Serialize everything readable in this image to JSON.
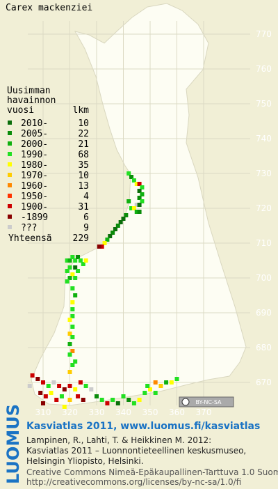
{
  "title": "Carex mackenziei",
  "legend": {
    "heading": [
      "Uusimman",
      "havainnon",
      "vuosi"
    ],
    "count_header": "lkm",
    "entries": [
      {
        "label": "2010-",
        "count": 10,
        "color": "#0b6e0b"
      },
      {
        "label": "2005-",
        "count": 22,
        "color": "#0a8c0a"
      },
      {
        "label": "2000-",
        "count": 21,
        "color": "#10b010"
      },
      {
        "label": "1990-",
        "count": 68,
        "color": "#22e022"
      },
      {
        "label": "1980-",
        "count": 35,
        "color": "#ffff00"
      },
      {
        "label": "1970-",
        "count": 10,
        "color": "#ffcc00"
      },
      {
        "label": "1960-",
        "count": 13,
        "color": "#ff8800"
      },
      {
        "label": "1950-",
        "count": 4,
        "color": "#ff3300"
      },
      {
        "label": "1900-",
        "count": 31,
        "color": "#cc0000"
      },
      {
        "label": "-1899",
        "count": 6,
        "color": "#880000"
      },
      {
        "label": "???",
        "count": 9,
        "color": "#cccccc"
      }
    ],
    "total_label": "Yhteensä",
    "total": 229
  },
  "x_ticks": [
    310,
    320,
    330,
    340,
    350,
    360,
    370
  ],
  "y_ticks": [
    670,
    680,
    690,
    700,
    710,
    720,
    730,
    740,
    750,
    760,
    770
  ],
  "cells": [
    [
      342,
      730,
      3
    ],
    [
      343,
      729,
      1
    ],
    [
      344,
      728,
      3
    ],
    [
      345,
      727,
      4
    ],
    [
      346,
      727,
      8
    ],
    [
      347,
      726,
      3
    ],
    [
      346,
      725,
      0
    ],
    [
      347,
      724,
      2
    ],
    [
      346,
      723,
      1
    ],
    [
      347,
      722,
      3
    ],
    [
      345,
      721,
      10
    ],
    [
      346,
      721,
      0
    ],
    [
      343,
      720,
      3
    ],
    [
      344,
      720,
      4
    ],
    [
      345,
      719,
      2
    ],
    [
      346,
      719,
      1
    ],
    [
      342,
      722,
      2
    ],
    [
      341,
      718,
      1
    ],
    [
      340,
      717,
      0
    ],
    [
      339,
      716,
      0
    ],
    [
      338,
      715,
      1
    ],
    [
      337,
      714,
      0
    ],
    [
      336,
      713,
      1
    ],
    [
      335,
      712,
      0
    ],
    [
      334,
      711,
      2
    ],
    [
      333,
      710,
      4
    ],
    [
      332,
      709,
      8
    ],
    [
      331,
      709,
      9
    ],
    [
      319,
      705,
      3
    ],
    [
      320,
      705,
      2
    ],
    [
      321,
      706,
      3
    ],
    [
      322,
      705,
      3
    ],
    [
      323,
      706,
      1
    ],
    [
      324,
      705,
      3
    ],
    [
      325,
      704,
      3
    ],
    [
      326,
      705,
      4
    ],
    [
      320,
      703,
      3
    ],
    [
      322,
      703,
      0
    ],
    [
      323,
      702,
      3
    ],
    [
      319,
      702,
      3
    ],
    [
      321,
      701,
      4
    ],
    [
      320,
      700,
      2
    ],
    [
      322,
      700,
      3
    ],
    [
      319,
      699,
      3
    ],
    [
      321,
      697,
      3
    ],
    [
      322,
      695,
      2
    ],
    [
      321,
      693,
      4
    ],
    [
      321,
      691,
      3
    ],
    [
      321,
      689,
      3
    ],
    [
      320,
      688,
      4
    ],
    [
      321,
      686,
      3
    ],
    [
      320,
      684,
      5
    ],
    [
      321,
      683,
      3
    ],
    [
      320,
      681,
      2
    ],
    [
      321,
      679,
      6
    ],
    [
      320,
      678,
      3
    ],
    [
      322,
      676,
      3
    ],
    [
      321,
      675,
      3
    ],
    [
      320,
      673,
      5
    ],
    [
      306,
      672,
      8
    ],
    [
      308,
      671,
      9
    ],
    [
      310,
      670,
      8
    ],
    [
      312,
      669,
      3
    ],
    [
      314,
      670,
      10
    ],
    [
      316,
      669,
      8
    ],
    [
      318,
      668,
      9
    ],
    [
      320,
      669,
      8
    ],
    [
      322,
      668,
      4
    ],
    [
      324,
      670,
      8
    ],
    [
      326,
      669,
      3
    ],
    [
      305,
      669,
      10
    ],
    [
      309,
      667,
      9
    ],
    [
      311,
      666,
      8
    ],
    [
      313,
      667,
      4
    ],
    [
      315,
      665,
      8
    ],
    [
      317,
      666,
      3
    ],
    [
      320,
      665,
      5
    ],
    [
      323,
      666,
      8
    ],
    [
      325,
      665,
      9
    ],
    [
      328,
      668,
      10
    ],
    [
      310,
      664,
      9
    ],
    [
      318,
      663,
      4
    ],
    [
      330,
      666,
      1
    ],
    [
      332,
      665,
      3
    ],
    [
      334,
      664,
      8
    ],
    [
      336,
      665,
      3
    ],
    [
      338,
      664,
      0
    ],
    [
      340,
      666,
      3
    ],
    [
      342,
      665,
      1
    ],
    [
      344,
      664,
      3
    ],
    [
      346,
      665,
      4
    ],
    [
      348,
      667,
      3
    ],
    [
      350,
      668,
      4
    ],
    [
      352,
      667,
      3
    ],
    [
      354,
      669,
      5
    ],
    [
      356,
      670,
      2
    ],
    [
      358,
      670,
      4
    ],
    [
      360,
      671,
      3
    ],
    [
      352,
      670,
      6
    ],
    [
      349,
      669,
      3
    ]
  ],
  "badge": "BY-NC-SA",
  "logo": "LUOMUS",
  "footer": {
    "headline": "Kasviatlas 2011, www.luomus.fi/kasviatlas",
    "citation": [
      "Lampinen, R., Lahti, T. & Heikkinen M. 2012:",
      "Kasviatlas 2011 – Luonnontieteellinen keskusmuseo,",
      "Helsingin Yliopisto, Helsinki."
    ],
    "license": [
      "Creative Commons Nimeä-Epäkaupallinen-Tarttuva 1.0 Suomi",
      "http://creativecommons.org/licenses/by-nc-sa/1.0/fi"
    ]
  }
}
